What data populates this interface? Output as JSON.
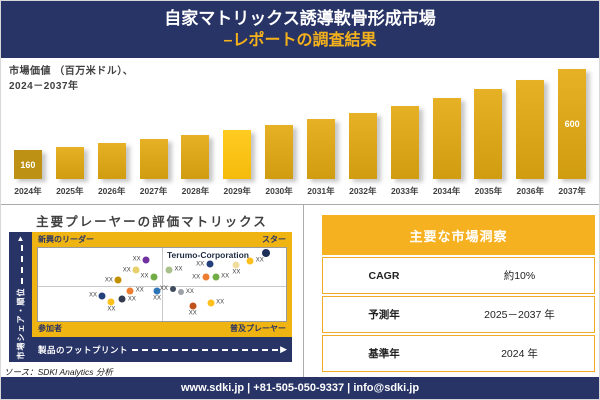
{
  "header": {
    "title_line1": "自家マトリックス誘導軟骨形成市場",
    "title_line2": "–レポートの調査結果"
  },
  "bar_section": {
    "label_line1": "市場価値 （百万米ドル）、",
    "label_line2": "2024－2037年"
  },
  "matrix_section": {
    "source": "ソース：SDKI Analytics 分析"
  },
  "insights": {
    "title": "主要な市場洞察",
    "rows": [
      {
        "label": "CAGR",
        "value": "約10%"
      },
      {
        "label": "予測年",
        "value": "2025－2037 年"
      },
      {
        "label": "基準年",
        "value": "2024 年"
      }
    ]
  },
  "footer": {
    "text": "www.sdki.jp | +81-505-050-9337 | info@sdki.jp"
  },
  "icons": {
    "y_axis_arrow": "▲",
    "x_axis_arrow": "▶"
  },
  "colors": {
    "navy": "#283366",
    "matrix_gold": "#EFB412",
    "table_header_gold": "#F5B120",
    "title_gold": "#F6B21B",
    "bar_gradient_top": "#E7B125",
    "bar_gradient_bottom": "#D09C10",
    "bar_first": "#BD9113",
    "bar_highlight": "#FFCB21"
  },
  "chart_data": [
    {
      "type": "bar",
      "title": "市場価値（百万米ドル）、2024－2037年",
      "categories": [
        "2024年",
        "2025年",
        "2026年",
        "2027年",
        "2028年",
        "2029年",
        "2030年",
        "2031年",
        "2032年",
        "2033年",
        "2034年",
        "2035年",
        "2036年",
        "2037年"
      ],
      "values": [
        160,
        177,
        196,
        217,
        240,
        266,
        294,
        326,
        361,
        400,
        443,
        490,
        542,
        600
      ],
      "data_labels": [
        {
          "index": 0,
          "text": "160"
        },
        {
          "index": 13,
          "text": "600"
        }
      ],
      "xlabel": "",
      "ylabel": "市場価値（百万米ドル）",
      "ylim": [
        0,
        600
      ],
      "grid": false,
      "highlight": {
        "first_index": 0,
        "bright_index": 5
      }
    },
    {
      "type": "scatter",
      "title": "主要プレーヤーの評価マトリックス",
      "xlabel": "製品のフットプリント",
      "ylabel": "市場シェア・順位",
      "quadrant_labels": {
        "top_left": "新興のリーダー",
        "top_right": "スター",
        "bottom_left": "参加者",
        "bottom_right": "普及プレーヤー"
      },
      "annotation": {
        "text": "Terumo-Corporation",
        "x": 52,
        "y": 3
      },
      "point_label": "XX",
      "points": [
        {
          "x": 43.6,
          "y": 16.7,
          "color": "#7030A0",
          "size": 7,
          "side": "left"
        },
        {
          "x": 39.6,
          "y": 31.0,
          "color": "#E8D06B",
          "size": 7,
          "side": "left"
        },
        {
          "x": 46.8,
          "y": 39.3,
          "color": "#70AD47",
          "size": 7,
          "side": "left"
        },
        {
          "x": 32.4,
          "y": 44.0,
          "color": "#BF9000",
          "size": 7,
          "side": "left"
        },
        {
          "x": 52.8,
          "y": 29.8,
          "color": "#A9C08C",
          "size": 7,
          "side": "right"
        },
        {
          "x": 69.2,
          "y": 22.6,
          "color": "#24407A",
          "size": 7,
          "side": "left"
        },
        {
          "x": 80.0,
          "y": 23.8,
          "color": "#F0DC9E",
          "size": 7,
          "side": "below"
        },
        {
          "x": 85.6,
          "y": 17.9,
          "color": "#FFC01E",
          "size": 7,
          "side": "right"
        },
        {
          "x": 92.0,
          "y": 7.1,
          "color": "#1F3058",
          "size": 8,
          "side": "none"
        },
        {
          "x": 67.6,
          "y": 40.5,
          "color": "#ED7D31",
          "size": 7,
          "side": "left"
        },
        {
          "x": 71.6,
          "y": 39.3,
          "color": "#70AD47",
          "size": 7,
          "side": "right"
        },
        {
          "x": 37.2,
          "y": 58.3,
          "color": "#ED7D31",
          "size": 7,
          "side": "right"
        },
        {
          "x": 48.0,
          "y": 58.3,
          "color": "#2E75B6",
          "size": 7,
          "side": "below"
        },
        {
          "x": 26.0,
          "y": 65.5,
          "color": "#24407A",
          "size": 7,
          "side": "left"
        },
        {
          "x": 34.0,
          "y": 70.2,
          "color": "#333A4D",
          "size": 7,
          "side": "right"
        },
        {
          "x": 29.6,
          "y": 73.8,
          "color": "#FFC01E",
          "size": 7,
          "side": "below"
        },
        {
          "x": 54.4,
          "y": 56.0,
          "color": "#3F4A5C",
          "size": 6,
          "side": "left"
        },
        {
          "x": 57.6,
          "y": 60.7,
          "color": "#9EA2A8",
          "size": 6,
          "side": "right"
        },
        {
          "x": 62.4,
          "y": 78.6,
          "color": "#C0531B",
          "size": 7,
          "side": "below"
        },
        {
          "x": 69.6,
          "y": 75.0,
          "color": "#FFC01E",
          "size": 7,
          "side": "right"
        }
      ]
    }
  ]
}
